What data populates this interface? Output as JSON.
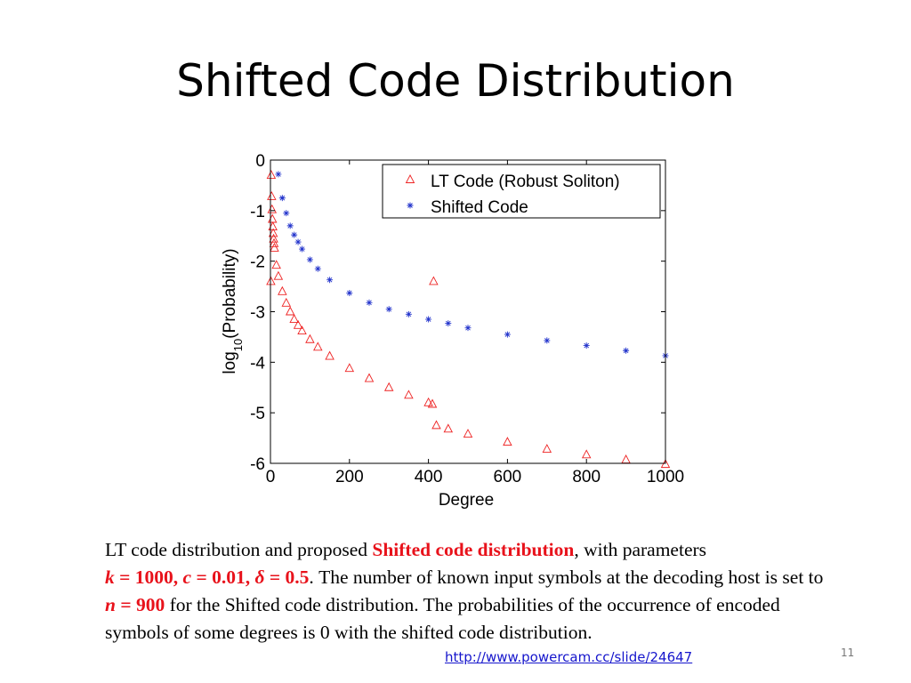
{
  "slide": {
    "title": "Shifted Code Distribution",
    "page_number": "11",
    "link_text": "http://www.powercam.cc/slide/24647",
    "caption": {
      "p1": "LT code distribution and proposed ",
      "highlight": "Shifted code distribution",
      "p2": ", with parameters",
      "k_var": "k",
      "k_val": " = 1000, ",
      "c_var": "c",
      "c_val": " = 0.01, ",
      "delta_var": "δ",
      "delta_val": " = 0.5",
      "p3": ". The number of known input symbols at the decoding host is set to ",
      "n_var": "n",
      "n_val": " = 900",
      "p4": " for the Shifted code distribution. The probabilities of the occurrence of encoded symbols of some degrees is 0 with the shifted code distribution."
    }
  },
  "chart_data": {
    "type": "scatter",
    "xlabel": "Degree",
    "ylabel_main": "log",
    "ylabel_sub": "10",
    "ylabel_tail": "(Probability)",
    "xlim": [
      0,
      1000
    ],
    "ylim": [
      -6,
      0
    ],
    "x_ticks": [
      0,
      200,
      400,
      600,
      800,
      1000
    ],
    "y_ticks": [
      0,
      -1,
      -2,
      -3,
      -4,
      -5,
      -6
    ],
    "legend_position": "top-right",
    "grid": false,
    "series": [
      {
        "name": "LT Code (Robust Soliton)",
        "marker": "triangle",
        "color": "#ee2222",
        "points": [
          [
            1,
            -2.4
          ],
          [
            2,
            -0.3
          ],
          [
            3,
            -0.72
          ],
          [
            4,
            -0.98
          ],
          [
            5,
            -1.17
          ],
          [
            6,
            -1.32
          ],
          [
            7,
            -1.45
          ],
          [
            8,
            -1.56
          ],
          [
            9,
            -1.65
          ],
          [
            10,
            -1.74
          ],
          [
            15,
            -2.08
          ],
          [
            20,
            -2.3
          ],
          [
            30,
            -2.6
          ],
          [
            40,
            -2.83
          ],
          [
            50,
            -3.0
          ],
          [
            60,
            -3.15
          ],
          [
            70,
            -3.27
          ],
          [
            80,
            -3.38
          ],
          [
            100,
            -3.55
          ],
          [
            120,
            -3.7
          ],
          [
            150,
            -3.88
          ],
          [
            200,
            -4.12
          ],
          [
            250,
            -4.32
          ],
          [
            300,
            -4.5
          ],
          [
            350,
            -4.65
          ],
          [
            400,
            -4.8
          ],
          [
            410,
            -4.83
          ],
          [
            413,
            -2.4
          ],
          [
            420,
            -5.25
          ],
          [
            450,
            -5.32
          ],
          [
            500,
            -5.42
          ],
          [
            600,
            -5.58
          ],
          [
            700,
            -5.72
          ],
          [
            800,
            -5.83
          ],
          [
            900,
            -5.93
          ],
          [
            1000,
            -6.02
          ]
        ]
      },
      {
        "name": "Shifted Code",
        "marker": "star",
        "color": "#2233cc",
        "points": [
          [
            20,
            -0.28
          ],
          [
            30,
            -0.75
          ],
          [
            40,
            -1.05
          ],
          [
            50,
            -1.3
          ],
          [
            60,
            -1.48
          ],
          [
            70,
            -1.62
          ],
          [
            80,
            -1.76
          ],
          [
            100,
            -1.97
          ],
          [
            120,
            -2.15
          ],
          [
            150,
            -2.37
          ],
          [
            200,
            -2.63
          ],
          [
            250,
            -2.82
          ],
          [
            300,
            -2.95
          ],
          [
            350,
            -3.05
          ],
          [
            400,
            -3.15
          ],
          [
            450,
            -3.23
          ],
          [
            500,
            -3.32
          ],
          [
            600,
            -3.45
          ],
          [
            700,
            -3.57
          ],
          [
            800,
            -3.67
          ],
          [
            900,
            -3.77
          ],
          [
            1000,
            -3.87
          ]
        ]
      }
    ]
  }
}
